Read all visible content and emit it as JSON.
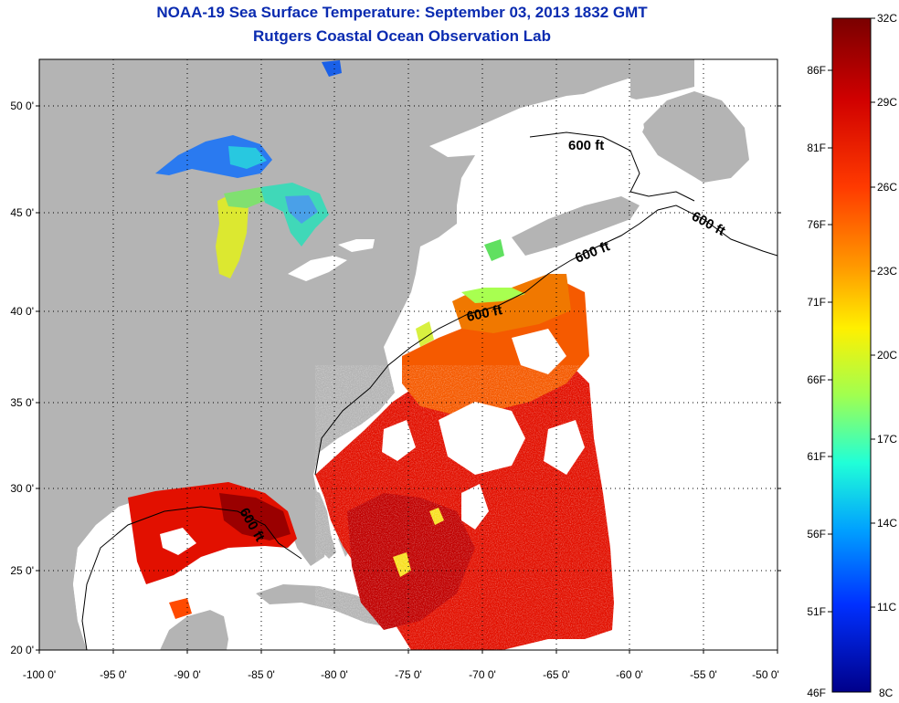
{
  "title_line1": "NOAA-19 Sea Surface Temperature:  September 03, 2013 1832 GMT",
  "title_line2": "Rutgers Coastal Ocean Observation Lab",
  "lon_ticks": [
    "-100 0'",
    "-95 0'",
    "-90 0'",
    "-85 0'",
    "-80 0'",
    "-75 0'",
    "-70 0'",
    "-65 0'",
    "-60 0'",
    "-55 0'",
    "-50 0'"
  ],
  "lat_ticks": [
    "50 0'",
    "45 0'",
    "40 0'",
    "35 0'",
    "30 0'",
    "25 0'",
    "20 0'"
  ],
  "contour_labels": [
    "600 ft",
    "600 ft",
    "600 ft",
    "600 ft",
    "600 ft"
  ],
  "colorbar": {
    "celsius": [
      "32C",
      "29C",
      "26C",
      "23C",
      "20C",
      "17C",
      "14C",
      "11C",
      "8C"
    ],
    "fahrenheit": [
      "86F",
      "81F",
      "76F",
      "71F",
      "66F",
      "61F",
      "56F",
      "51F",
      "46F"
    ],
    "min_c": 8,
    "max_c": 32
  },
  "colors": {
    "land": "#b4b4b4",
    "no_data": "#ffffff",
    "title": "#0a2bb0"
  }
}
